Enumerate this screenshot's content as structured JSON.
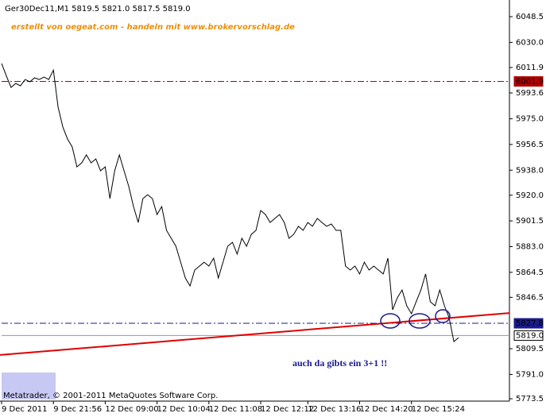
{
  "chart_data": {
    "type": "line",
    "title": "Ger30Dec11,M1  5819.5 5821.0 5817.5 5819.0",
    "color": "#000000",
    "categories": [
      "9 Dec 2011",
      null,
      null,
      null,
      null,
      null,
      null,
      null,
      null,
      null,
      null,
      "9 Dec 21:56",
      null,
      null,
      null,
      null,
      null,
      null,
      null,
      null,
      null,
      null,
      "12 Dec 09:00",
      null,
      null,
      null,
      null,
      null,
      null,
      null,
      null,
      null,
      null,
      "12 Dec 10:04",
      null,
      null,
      null,
      null,
      null,
      null,
      null,
      null,
      null,
      null,
      "12 Dec 11:08",
      null,
      null,
      null,
      null,
      null,
      null,
      null,
      null,
      null,
      null,
      "12 Dec 12:12",
      null,
      null,
      null,
      null,
      null,
      null,
      null,
      null,
      null,
      "12 Dec 13:16",
      null,
      null,
      null,
      null,
      null,
      null,
      null,
      null,
      null,
      null,
      "12 Dec 14:20",
      null,
      null,
      null,
      null,
      null,
      null,
      null,
      null,
      null,
      null,
      "12 Dec 15:24",
      null,
      null,
      null,
      null,
      null,
      null,
      null,
      null,
      null,
      null
    ],
    "values": [
      6014.8,
      6006,
      5997.6,
      6000.5,
      5998.7,
      6003.3,
      6001.6,
      6004.5,
      6003.3,
      6005,
      6003.3,
      6010,
      5983.3,
      5969,
      5960.4,
      5954.7,
      5940.4,
      5943.3,
      5949,
      5943.3,
      5946.1,
      5937.6,
      5940.4,
      5917.6,
      5937.6,
      5949,
      5937.6,
      5926.1,
      5911.8,
      5900.4,
      5917.6,
      5920.4,
      5917.6,
      5906.1,
      5911.8,
      5894.7,
      5889,
      5883.3,
      5871.8,
      5860.4,
      5854.7,
      5866.1,
      5869,
      5871.8,
      5869,
      5874.7,
      5860.4,
      5871.8,
      5883.3,
      5886.1,
      5877.6,
      5889,
      5883.3,
      5891.8,
      5894.7,
      5909,
      5906.1,
      5900.4,
      5903.3,
      5906.1,
      5900.4,
      5889,
      5891.8,
      5897.6,
      5894.7,
      5900.4,
      5897.6,
      5903.3,
      5900.4,
      5897.6,
      5899.3,
      5894.7,
      5894.7,
      5869,
      5866.1,
      5869,
      5863.3,
      5871.8,
      5866.1,
      5869,
      5866.1,
      5863.3,
      5874.7,
      5837.5,
      5846.1,
      5851.8,
      5840.4,
      5834.7,
      5843.3,
      5851.8,
      5863.3,
      5843.3,
      5840.4,
      5851.8,
      5840.4,
      5831.8,
      5814.6,
      5817.5
    ],
    "ylim": [
      5771.8,
      6060.5
    ],
    "yticks": [
      6048.5,
      {
        "value": 6030,
        "label": "6030.0"
      },
      6011.9,
      5993.6,
      {
        "value": 5975,
        "label": "5975.0"
      },
      5956.5,
      {
        "value": 5938,
        "label": "5938.0"
      },
      {
        "value": 5920,
        "label": "5920.0"
      },
      5901.5,
      {
        "value": 5883,
        "label": "5883.0"
      },
      5864.5,
      5846.5,
      5809.5,
      {
        "value": 5791,
        "label": "5791.0"
      },
      5773.5
    ],
    "hlines": [
      {
        "value": 6001.9,
        "color": "#b00000",
        "style": "dashdot"
      },
      {
        "value": 5827.8,
        "color": "#1a1a8c",
        "style": "dashdot"
      },
      {
        "value": 5819,
        "label": "5819.0",
        "color": "#8a9aa8",
        "style": "solid"
      }
    ],
    "trendline": {
      "values": [
        5805.0,
        5835.2
      ],
      "color": "#e00000"
    },
    "annotations": [
      "erstellt von oegeat.com - handeln mit www.brokervorschlag.de",
      "auch da gibts ein 3+1 !!"
    ],
    "footer": "Metatrader, © 2001-2011 MetaQuotes Software Corp."
  }
}
